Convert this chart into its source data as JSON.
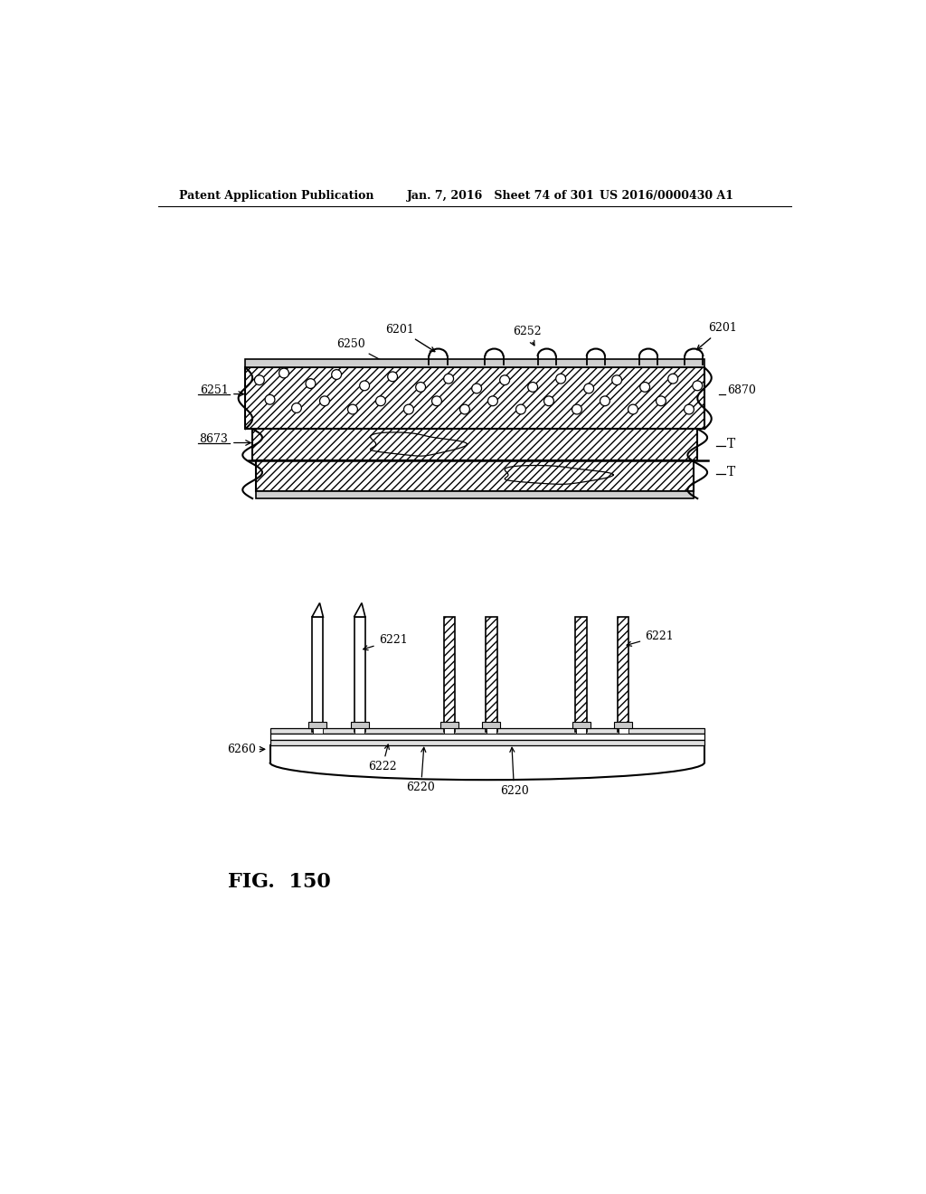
{
  "bg_color": "#ffffff",
  "header_left": "Patent Application Publication",
  "header_mid": "Jan. 7, 2016   Sheet 74 of 301",
  "header_right": "US 2016/0000430 A1",
  "fig_label": "FIG.  150"
}
